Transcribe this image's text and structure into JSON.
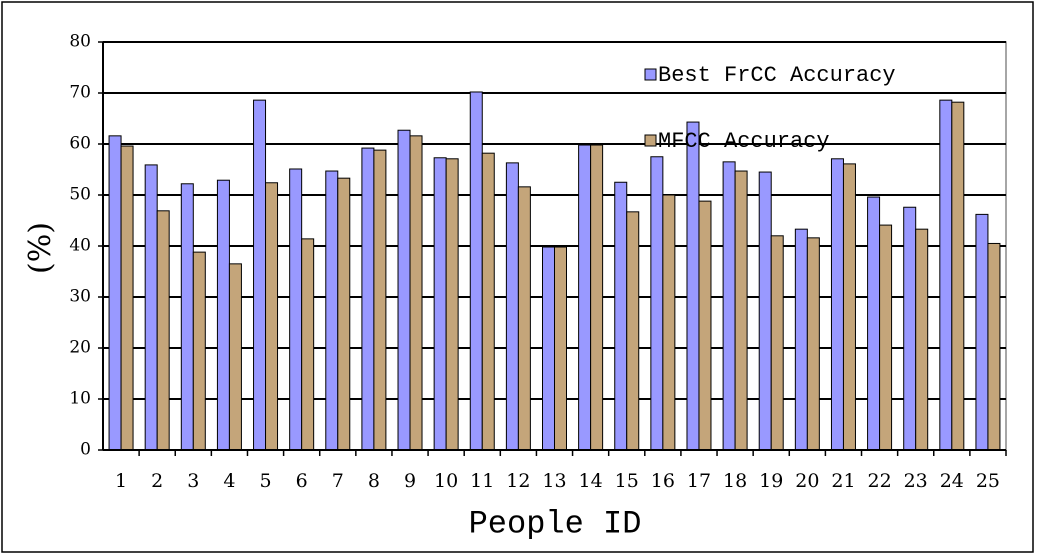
{
  "chart_data": {
    "type": "bar",
    "xlabel": "People ID",
    "ylabel": "(%)",
    "categories": [
      "1",
      "2",
      "3",
      "4",
      "5",
      "6",
      "7",
      "8",
      "9",
      "10",
      "11",
      "12",
      "13",
      "14",
      "15",
      "16",
      "17",
      "18",
      "19",
      "20",
      "21",
      "22",
      "23",
      "24",
      "25"
    ],
    "series": [
      {
        "name": "Best FrCC Accuracy",
        "color": "#9999ff",
        "values": [
          61.6,
          55.9,
          52.2,
          52.9,
          68.6,
          55.1,
          54.7,
          59.2,
          62.7,
          57.3,
          70.2,
          56.3,
          39.8,
          59.8,
          52.5,
          57.5,
          64.3,
          56.5,
          54.5,
          43.3,
          57.1,
          49.6,
          47.6,
          68.6,
          46.2
        ]
      },
      {
        "name": "MFCC Accuracy",
        "color": "#c4a57a",
        "values": [
          59.6,
          46.9,
          38.8,
          36.5,
          52.4,
          41.4,
          53.3,
          58.8,
          61.6,
          57.1,
          58.2,
          51.6,
          39.8,
          59.8,
          46.7,
          50.0,
          48.8,
          54.7,
          42.0,
          41.6,
          56.1,
          44.1,
          43.3,
          68.2,
          40.5
        ]
      }
    ],
    "ylim": [
      0,
      80
    ],
    "yticks": [
      0,
      10,
      20,
      30,
      40,
      50,
      60,
      70,
      80
    ],
    "grid": true,
    "legend": "top-right"
  }
}
